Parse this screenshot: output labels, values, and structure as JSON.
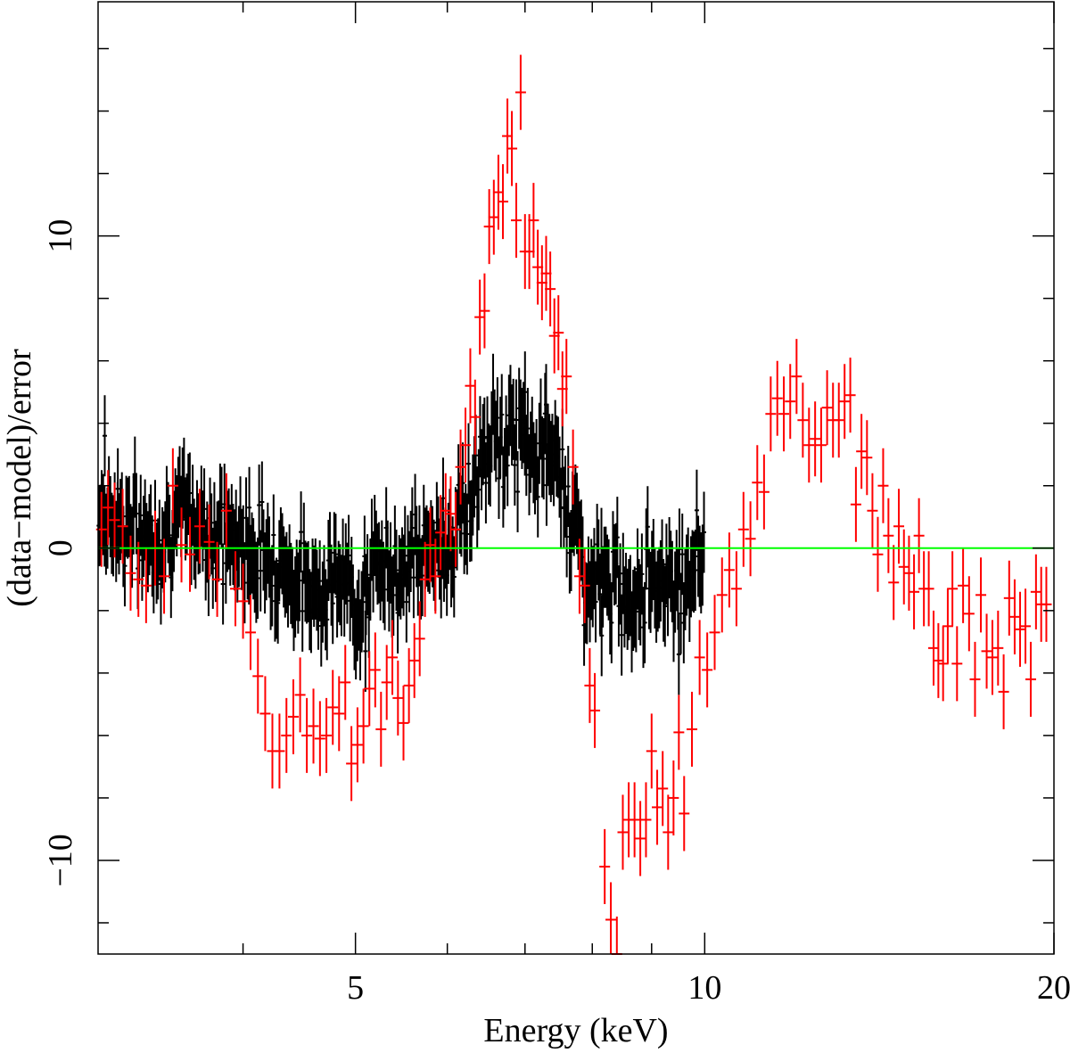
{
  "chart_data": {
    "type": "scatter",
    "title": "",
    "xlabel": "Energy (keV)",
    "ylabel": "(data−model)/error",
    "x_scale": "log",
    "xlim": [
      3.0,
      20.0
    ],
    "ylim": [
      -13.0,
      17.5
    ],
    "x_ticks_major": [
      5,
      10,
      20
    ],
    "x_tick_labels": [
      "5",
      "10",
      "20"
    ],
    "x_ticks_minor": [
      4,
      6,
      7,
      8,
      9
    ],
    "y_ticks_major": [
      -10,
      0,
      10
    ],
    "y_tick_labels": [
      "−10",
      "0",
      "10"
    ],
    "y_ticks_minor": [
      -12,
      -8,
      -6,
      -4,
      -2,
      2,
      4,
      6,
      8,
      12,
      14,
      16
    ],
    "grid": false,
    "legend": "none",
    "zero_line": {
      "y": 0,
      "color": "#00ff00"
    },
    "series": [
      {
        "color": "#ff0000",
        "points": [
          [
            3.02,
            0.6,
            1.2
          ],
          [
            3.06,
            1.3,
            1.2
          ],
          [
            3.1,
            0.9,
            1.2
          ],
          [
            3.15,
            0.7,
            1.2
          ],
          [
            3.2,
            -0.8,
            1.2
          ],
          [
            3.25,
            -1.0,
            1.2
          ],
          [
            3.3,
            -1.2,
            1.2
          ],
          [
            3.36,
            0.0,
            1.2
          ],
          [
            3.42,
            -0.9,
            1.2
          ],
          [
            3.48,
            2.0,
            1.2
          ],
          [
            3.54,
            0.1,
            1.2
          ],
          [
            3.6,
            -0.2,
            1.2
          ],
          [
            3.67,
            0.7,
            1.2
          ],
          [
            3.74,
            0.2,
            1.2
          ],
          [
            3.8,
            -1.0,
            1.2
          ],
          [
            3.87,
            1.2,
            1.2
          ],
          [
            3.94,
            -1.3,
            1.2
          ],
          [
            4.0,
            -1.7,
            1.2
          ],
          [
            4.06,
            -2.7,
            1.2
          ],
          [
            4.12,
            -4.1,
            1.2
          ],
          [
            4.18,
            -5.3,
            1.2
          ],
          [
            4.24,
            -6.5,
            1.2
          ],
          [
            4.3,
            -6.5,
            1.2
          ],
          [
            4.36,
            -6.0,
            1.2
          ],
          [
            4.42,
            -5.4,
            1.2
          ],
          [
            4.48,
            -4.7,
            1.2
          ],
          [
            4.54,
            -6.0,
            1.2
          ],
          [
            4.6,
            -5.7,
            1.2
          ],
          [
            4.66,
            -6.1,
            1.2
          ],
          [
            4.72,
            -6.0,
            1.2
          ],
          [
            4.78,
            -5.1,
            1.2
          ],
          [
            4.84,
            -5.3,
            1.2
          ],
          [
            4.9,
            -4.3,
            1.2
          ],
          [
            4.96,
            -6.9,
            1.2
          ],
          [
            5.02,
            -6.3,
            1.2
          ],
          [
            5.08,
            -5.7,
            1.2
          ],
          [
            5.14,
            -4.5,
            1.2
          ],
          [
            5.2,
            -3.9,
            1.2
          ],
          [
            5.26,
            -5.8,
            1.2
          ],
          [
            5.32,
            -4.3,
            1.2
          ],
          [
            5.38,
            -3.5,
            1.2
          ],
          [
            5.44,
            -4.8,
            1.2
          ],
          [
            5.5,
            -5.6,
            1.2
          ],
          [
            5.56,
            -4.4,
            1.2
          ],
          [
            5.62,
            -3.6,
            1.2
          ],
          [
            5.68,
            -2.9,
            1.2
          ],
          [
            5.74,
            -1.0,
            1.2
          ],
          [
            5.8,
            0.1,
            1.2
          ],
          [
            5.86,
            -0.9,
            1.2
          ],
          [
            5.92,
            0.5,
            1.2
          ],
          [
            5.98,
            1.2,
            1.2
          ],
          [
            6.04,
            1.1,
            1.2
          ],
          [
            6.1,
            0.6,
            1.2
          ],
          [
            6.16,
            2.6,
            1.2
          ],
          [
            6.22,
            3.3,
            1.2
          ],
          [
            6.28,
            5.2,
            1.2
          ],
          [
            6.34,
            4.2,
            1.2
          ],
          [
            6.4,
            7.4,
            1.2
          ],
          [
            6.46,
            7.6,
            1.2
          ],
          [
            6.52,
            10.3,
            1.2
          ],
          [
            6.58,
            10.6,
            1.2
          ],
          [
            6.64,
            11.4,
            1.2
          ],
          [
            6.7,
            11.1,
            1.2
          ],
          [
            6.76,
            13.2,
            1.2
          ],
          [
            6.82,
            12.8,
            1.2
          ],
          [
            6.88,
            10.5,
            1.2
          ],
          [
            6.94,
            14.6,
            1.2
          ],
          [
            7.0,
            9.5,
            1.2
          ],
          [
            7.06,
            9.5,
            1.2
          ],
          [
            7.12,
            10.5,
            1.2
          ],
          [
            7.18,
            9.0,
            1.2
          ],
          [
            7.24,
            8.5,
            1.2
          ],
          [
            7.3,
            8.8,
            1.2
          ],
          [
            7.36,
            8.3,
            1.2
          ],
          [
            7.42,
            6.8,
            1.2
          ],
          [
            7.48,
            6.9,
            1.2
          ],
          [
            7.54,
            5.1,
            1.2
          ],
          [
            7.6,
            5.5,
            1.2
          ],
          [
            7.7,
            2.6,
            1.2
          ],
          [
            7.8,
            -0.9,
            1.2
          ],
          [
            7.88,
            -1.2,
            1.2
          ],
          [
            7.96,
            -4.4,
            1.2
          ],
          [
            8.04,
            -5.2,
            1.2
          ],
          [
            8.2,
            -10.2,
            1.2
          ],
          [
            8.3,
            -11.9,
            1.2
          ],
          [
            8.4,
            -13.0,
            1.2
          ],
          [
            8.5,
            -9.1,
            1.2
          ],
          [
            8.6,
            -8.7,
            1.2
          ],
          [
            8.7,
            -8.7,
            1.2
          ],
          [
            8.8,
            -9.3,
            1.2
          ],
          [
            8.9,
            -8.7,
            1.2
          ],
          [
            9.0,
            -6.5,
            1.2
          ],
          [
            9.1,
            -8.3,
            1.2
          ],
          [
            9.2,
            -7.7,
            1.2
          ],
          [
            9.3,
            -9.1,
            1.2
          ],
          [
            9.4,
            -8.0,
            1.2
          ],
          [
            9.5,
            -5.9,
            1.2
          ],
          [
            9.6,
            -8.5,
            1.2
          ],
          [
            9.75,
            -5.8,
            1.2
          ],
          [
            9.9,
            -3.5,
            1.2
          ],
          [
            10.05,
            -3.9,
            1.2
          ],
          [
            10.2,
            -2.7,
            1.2
          ],
          [
            10.35,
            -1.5,
            1.2
          ],
          [
            10.5,
            -0.7,
            1.2
          ],
          [
            10.65,
            -1.3,
            1.2
          ],
          [
            10.8,
            0.6,
            1.2
          ],
          [
            10.95,
            0.3,
            1.2
          ],
          [
            11.1,
            2.1,
            1.2
          ],
          [
            11.25,
            1.8,
            1.2
          ],
          [
            11.4,
            4.3,
            1.2
          ],
          [
            11.55,
            4.8,
            1.2
          ],
          [
            11.7,
            4.3,
            1.2
          ],
          [
            11.85,
            4.7,
            1.2
          ],
          [
            12.0,
            5.5,
            1.2
          ],
          [
            12.15,
            4.1,
            1.2
          ],
          [
            12.3,
            3.3,
            1.2
          ],
          [
            12.45,
            3.5,
            1.2
          ],
          [
            12.6,
            3.3,
            1.2
          ],
          [
            12.75,
            4.5,
            1.2
          ],
          [
            12.9,
            4.1,
            1.2
          ],
          [
            13.05,
            4.1,
            1.2
          ],
          [
            13.2,
            4.7,
            1.2
          ],
          [
            13.35,
            4.9,
            1.2
          ],
          [
            13.5,
            1.4,
            1.2
          ],
          [
            13.65,
            3.1,
            1.2
          ],
          [
            13.8,
            2.9,
            1.2
          ],
          [
            13.95,
            1.2,
            1.2
          ],
          [
            14.1,
            -0.2,
            1.2
          ],
          [
            14.25,
            2.0,
            1.2
          ],
          [
            14.4,
            0.4,
            1.2
          ],
          [
            14.55,
            -1.1,
            1.2
          ],
          [
            14.7,
            0.7,
            1.2
          ],
          [
            14.85,
            -0.6,
            1.2
          ],
          [
            15.0,
            -0.8,
            1.2
          ],
          [
            15.15,
            -1.4,
            1.2
          ],
          [
            15.3,
            0.4,
            1.2
          ],
          [
            15.45,
            -1.3,
            1.2
          ],
          [
            15.6,
            -1.3,
            1.2
          ],
          [
            15.75,
            -3.2,
            1.2
          ],
          [
            15.9,
            -3.6,
            1.2
          ],
          [
            16.05,
            -3.7,
            1.2
          ],
          [
            16.2,
            -2.5,
            1.2
          ],
          [
            16.35,
            -1.3,
            1.2
          ],
          [
            16.5,
            -3.7,
            1.2
          ],
          [
            16.7,
            -1.2,
            1.2
          ],
          [
            16.9,
            -2.1,
            1.2
          ],
          [
            17.1,
            -4.2,
            1.2
          ],
          [
            17.3,
            -1.5,
            1.2
          ],
          [
            17.5,
            -3.3,
            1.2
          ],
          [
            17.7,
            -3.5,
            1.2
          ],
          [
            17.9,
            -3.2,
            1.2
          ],
          [
            18.1,
            -4.6,
            1.2
          ],
          [
            18.3,
            -1.6,
            1.2
          ],
          [
            18.5,
            -2.2,
            1.2
          ],
          [
            18.7,
            -2.6,
            1.2
          ],
          [
            18.9,
            -2.5,
            1.2
          ],
          [
            19.1,
            -4.2,
            1.2
          ],
          [
            19.3,
            -1.4,
            1.2
          ],
          [
            19.5,
            -1.8,
            1.2
          ],
          [
            19.7,
            -1.8,
            1.2
          ]
        ]
      },
      {
        "color": "#000000",
        "generated": true,
        "range": [
          3.0,
          10.0
        ],
        "trend": [
          [
            3.0,
            1.2
          ],
          [
            3.3,
            0.3
          ],
          [
            3.6,
            1.0
          ],
          [
            3.9,
            0.2
          ],
          [
            4.2,
            -0.1
          ],
          [
            4.5,
            -1.2
          ],
          [
            4.8,
            -1.0
          ],
          [
            5.0,
            -1.6
          ],
          [
            5.2,
            -0.8
          ],
          [
            5.5,
            -0.5
          ],
          [
            5.8,
            -0.2
          ],
          [
            6.0,
            0.1
          ],
          [
            6.2,
            1.0
          ],
          [
            6.4,
            2.6
          ],
          [
            6.6,
            3.4
          ],
          [
            6.9,
            3.5
          ],
          [
            7.2,
            3.0
          ],
          [
            7.5,
            2.6
          ],
          [
            7.7,
            1.0
          ],
          [
            7.9,
            -1.2
          ],
          [
            8.2,
            -1.0
          ],
          [
            8.6,
            -1.5
          ],
          [
            9.0,
            -0.8
          ],
          [
            9.5,
            -1.1
          ],
          [
            10.0,
            0.0
          ]
        ],
        "count": 420,
        "scatter": 1.0,
        "error": 1.3,
        "spikes": [
          [
            3.04,
            3.6
          ],
          [
            3.12,
            1.9
          ],
          [
            4.05,
            1.3
          ],
          [
            5.1,
            -3.3
          ],
          [
            5.95,
            1.6
          ],
          [
            7.0,
            5.0
          ],
          [
            7.3,
            4.6
          ],
          [
            8.15,
            -2.8
          ],
          [
            9.5,
            -3.4
          ]
        ]
      }
    ]
  }
}
